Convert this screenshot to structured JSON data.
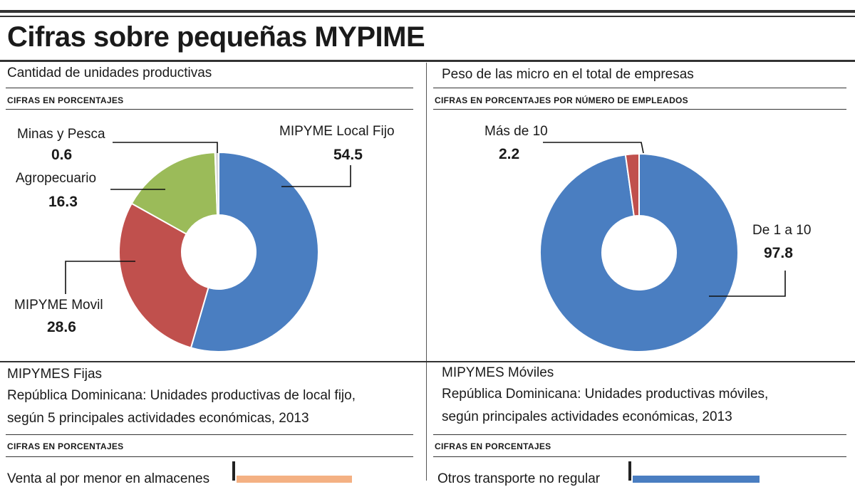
{
  "page_title": "Cifras sobre pequeñas MYPIME",
  "colors": {
    "blue": "#4a7ec1",
    "red": "#c0504d",
    "green": "#9bbb59",
    "grey": "#d9d9d9",
    "orange": "#f4b183"
  },
  "left_chart": {
    "heading": "Cantidad de unidades productivas",
    "subheading": "CIFRAS EN PORCENTAJES"
  },
  "right_chart": {
    "heading": "Peso de las micro en el total de empresas",
    "subheading": "CIFRAS EN PORCENTAJES POR NÚMERO DE EMPLEADOS"
  },
  "bottom_left": {
    "heading": "MIPYMES Fijas",
    "line1": "República Dominicana:  Unidades productivas  de local fijo,",
    "line2": "según 5 principales actividades económicas, 2013",
    "subheading": "CIFRAS EN PORCENTAJES",
    "partial_label": "Venta al por menor en almacenes"
  },
  "bottom_right": {
    "heading": "MIPYMES Móviles",
    "line1": "República Dominicana: Unidades productivas móviles,",
    "line2": "según principales actividades económicas, 2013",
    "subheading": "CIFRAS EN PORCENTAJES",
    "partial_label": "Otros transporte  no regular"
  },
  "chart_data": [
    {
      "type": "pie",
      "title": "Cantidad de unidades productivas",
      "subtitle": "CIFRAS EN PORCENTAJES",
      "slices": [
        {
          "label": "MIPYME Local Fijo",
          "value": 54.5,
          "color": "#4a7ec1"
        },
        {
          "label": "MIPYME Movil",
          "value": 28.6,
          "color": "#c0504d"
        },
        {
          "label": "Agropecuario",
          "value": 16.3,
          "color": "#9bbb59"
        },
        {
          "label": "Minas y Pesca",
          "value": 0.6,
          "color": "#d9d9d9"
        }
      ]
    },
    {
      "type": "pie",
      "title": "Peso de las micro en el total de empresas",
      "subtitle": "CIFRAS EN PORCENTAJES POR NÚMERO DE EMPLEADOS",
      "slices": [
        {
          "label": "De 1 a 10",
          "value": 97.8,
          "color": "#4a7ec1"
        },
        {
          "label": "Más de 10",
          "value": 2.2,
          "color": "#c0504d"
        }
      ]
    }
  ]
}
